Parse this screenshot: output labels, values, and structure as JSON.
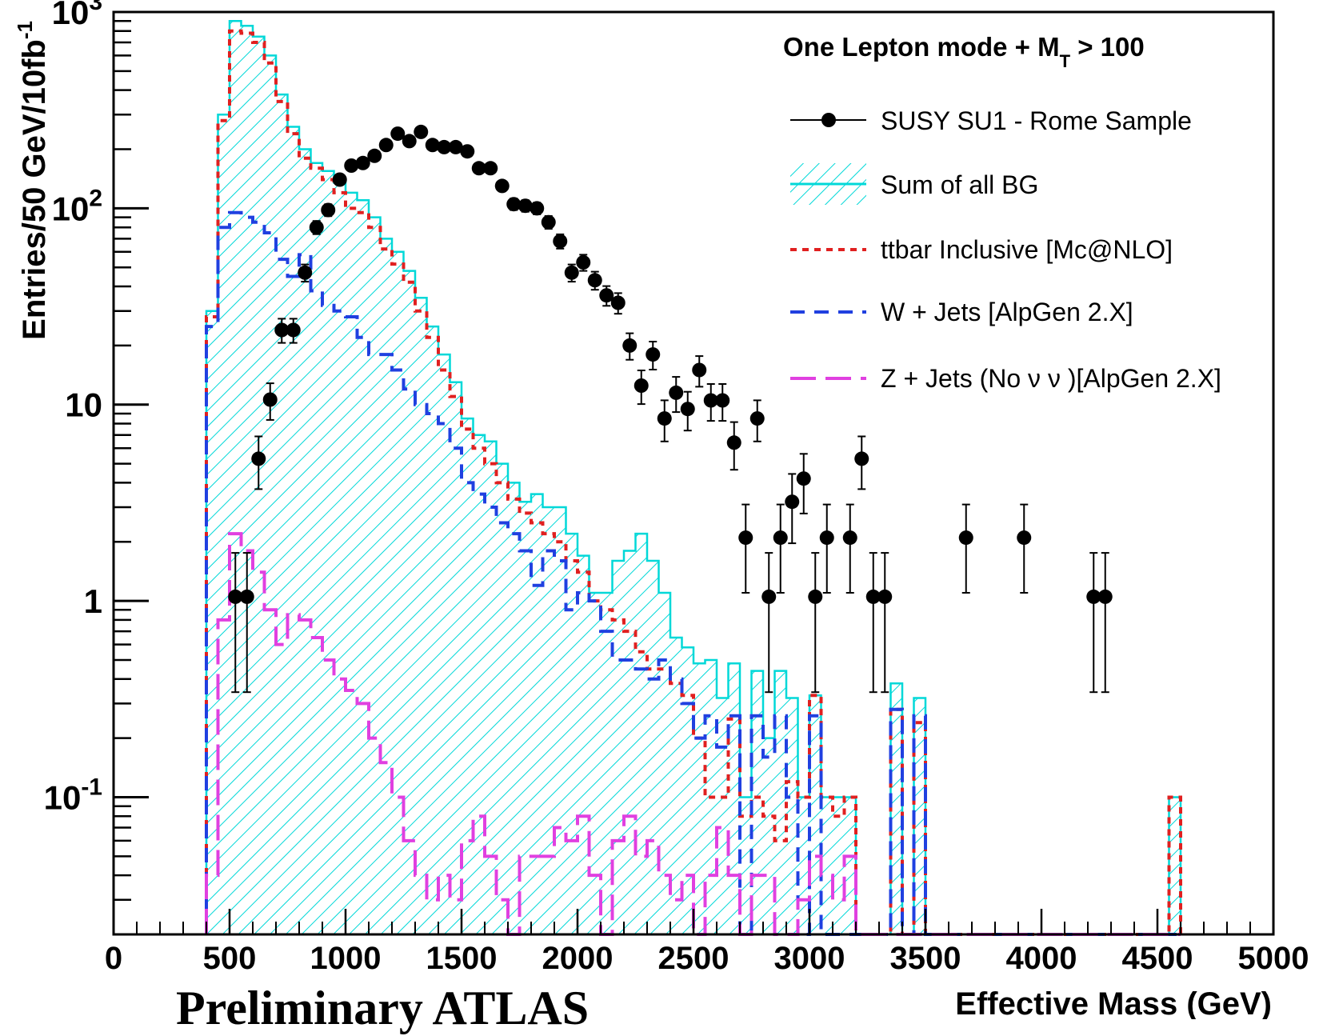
{
  "chart_data": {
    "type": "histogram",
    "xlabel": "Effective Mass (GeV)",
    "ylabel": "Entries/50 GeV/10fb",
    "ylabel_sup": "-1",
    "title": "One Lepton mode + M",
    "title_sub": "T",
    "title_tail": " > 100",
    "xlim": [
      0,
      5000
    ],
    "ylim": [
      0.02,
      1000
    ],
    "yscale": "log",
    "bin_width": 50,
    "x_ticks": [
      0,
      500,
      1000,
      1500,
      2000,
      2500,
      3000,
      3500,
      4000,
      4500,
      5000
    ],
    "x_tick_labels": [
      "0",
      "500",
      "1000",
      "1500",
      "2000",
      "2500",
      "3000",
      "3500",
      "4000",
      "4500",
      "5000"
    ],
    "y_ticks": [
      {
        "value": 1000,
        "base": "10",
        "sup": "3"
      },
      {
        "value": 100,
        "base": "10",
        "sup": "2"
      },
      {
        "value": 10,
        "base": "10",
        "sup": ""
      },
      {
        "value": 1,
        "base": "1",
        "sup": ""
      },
      {
        "value": 0.1,
        "base": "10",
        "sup": "-1"
      }
    ],
    "legend_position": "top-right",
    "series": [
      {
        "name": "Sum of all BG",
        "kind": "hatched-histogram",
        "color": "#00d8d8",
        "bins_start": 400,
        "values": [
          30,
          300,
          900,
          850,
          750,
          600,
          380,
          260,
          200,
          170,
          155,
          135,
          120,
          110,
          90,
          70,
          60,
          48,
          35,
          25,
          18,
          13,
          8.5,
          7,
          6.5,
          5,
          4,
          3.2,
          3.5,
          3.0,
          3.0,
          2.2,
          1.7,
          1.1,
          1.1,
          1.6,
          1.8,
          2.2,
          1.6,
          1.1,
          0.65,
          0.58,
          0.48,
          0.5,
          0.32,
          0.48,
          0.1,
          0.44,
          0.2,
          0.44,
          0.32,
          0.1,
          0.33,
          0.1,
          0.1,
          0.1,
          0.02,
          0.02,
          0.02,
          0.38,
          0.02,
          0.32,
          0.02,
          0.02,
          0.02,
          0.02,
          0.02,
          0.02,
          0.02,
          0.02,
          0.02,
          0.02,
          0.02,
          0.02,
          0.02,
          0.02,
          0.02,
          0.02,
          0.02,
          0.02,
          0.02,
          0.02,
          0.02,
          0.1
        ]
      },
      {
        "name": "ttbar Inclusive [Mc@NLO]",
        "kind": "dotted-step",
        "color": "#e02020",
        "bins_start": 400,
        "values": [
          28,
          280,
          800,
          780,
          700,
          550,
          350,
          240,
          180,
          160,
          140,
          120,
          100,
          95,
          80,
          62,
          52,
          42,
          30,
          22,
          15,
          11,
          7.5,
          6,
          5,
          4,
          3.3,
          2.8,
          2.5,
          2.2,
          2.0,
          1.6,
          1.4,
          1.0,
          0.9,
          0.8,
          0.7,
          0.55,
          0.45,
          0.45,
          0.38,
          0.33,
          0.2,
          0.1,
          0.1,
          0.25,
          0.08,
          0.1,
          0.08,
          0.06,
          0.12,
          0.1,
          0.33,
          0.1,
          0.08,
          0.1,
          0.02,
          0.02,
          0.02,
          0.28,
          0.02,
          0.24,
          0.02,
          0.02,
          0.02,
          0.02,
          0.02,
          0.02,
          0.02,
          0.02,
          0.02,
          0.02,
          0.02,
          0.02,
          0.02,
          0.02,
          0.02,
          0.02,
          0.02,
          0.02,
          0.02,
          0.02,
          0.02,
          0.1
        ]
      },
      {
        "name": "W + Jets [AlpGen 2.X]",
        "kind": "dashed-step",
        "color": "#2040e0",
        "bins_start": 400,
        "values": [
          25,
          80,
          95,
          90,
          85,
          75,
          55,
          45,
          58,
          38,
          32,
          30,
          28,
          22,
          18,
          18,
          15,
          12,
          10,
          9,
          8,
          6,
          4,
          3.5,
          3.0,
          2.5,
          2.2,
          1.8,
          1.2,
          1.8,
          1.6,
          0.9,
          1.1,
          1.0,
          0.7,
          0.5,
          0.5,
          0.45,
          0.4,
          0.5,
          0.4,
          0.3,
          0.2,
          0.26,
          0.18,
          0.26,
          0.02,
          0.26,
          0.16,
          0.26,
          0.1,
          0.02,
          0.26,
          0.02,
          0.02,
          0.02,
          0.02,
          0.02,
          0.02,
          0.28,
          0.02,
          0.26,
          0.02,
          0.02,
          0.02,
          0.02,
          0.02,
          0.02,
          0.02,
          0.02,
          0.02,
          0.02,
          0.02,
          0.02,
          0.02,
          0.02,
          0.02,
          0.02,
          0.02,
          0.02,
          0.02,
          0.02,
          0.02,
          0.02
        ]
      },
      {
        "name": "Z + Jets (No ν ν )[AlpGen 2.X]",
        "kind": "long-dashed-step",
        "color": "#e040e0",
        "bins_start": 400,
        "values": [
          0.04,
          0.8,
          2.2,
          1.8,
          1.4,
          0.9,
          0.6,
          0.85,
          0.8,
          0.65,
          0.5,
          0.4,
          0.35,
          0.3,
          0.2,
          0.15,
          0.1,
          0.06,
          0.04,
          0.03,
          0.04,
          0.03,
          0.06,
          0.08,
          0.05,
          0.03,
          0.02,
          0.05,
          0.05,
          0.05,
          0.07,
          0.06,
          0.08,
          0.04,
          0.02,
          0.06,
          0.08,
          0.05,
          0.06,
          0.04,
          0.03,
          0.04,
          0.02,
          0.04,
          0.07,
          0.04,
          0.02,
          0.04,
          0.04,
          0.02,
          0.02,
          0.03,
          0.05,
          0.04,
          0.03,
          0.05,
          0.02,
          0.02,
          0.02,
          0.02,
          0.02,
          0.02,
          0.02,
          0.02,
          0.02,
          0.02,
          0.02,
          0.02,
          0.02,
          0.02,
          0.02,
          0.02,
          0.02,
          0.02,
          0.02,
          0.02,
          0.02,
          0.02,
          0.02,
          0.02,
          0.02,
          0.02,
          0.02,
          0.02
        ]
      },
      {
        "name": "SUSY SU1 - Rome Sample",
        "kind": "points-with-errors",
        "color": "#000000",
        "points": [
          {
            "x": 525,
            "y": 1.05
          },
          {
            "x": 575,
            "y": 1.05
          },
          {
            "x": 625,
            "y": 5.3
          },
          {
            "x": 675,
            "y": 10.6
          },
          {
            "x": 725,
            "y": 24
          },
          {
            "x": 775,
            "y": 24
          },
          {
            "x": 825,
            "y": 47
          },
          {
            "x": 875,
            "y": 80
          },
          {
            "x": 925,
            "y": 98
          },
          {
            "x": 975,
            "y": 140
          },
          {
            "x": 1025,
            "y": 165
          },
          {
            "x": 1075,
            "y": 170
          },
          {
            "x": 1125,
            "y": 185
          },
          {
            "x": 1175,
            "y": 210
          },
          {
            "x": 1225,
            "y": 240
          },
          {
            "x": 1275,
            "y": 220
          },
          {
            "x": 1325,
            "y": 245
          },
          {
            "x": 1375,
            "y": 210
          },
          {
            "x": 1425,
            "y": 205
          },
          {
            "x": 1475,
            "y": 205
          },
          {
            "x": 1525,
            "y": 195
          },
          {
            "x": 1575,
            "y": 160
          },
          {
            "x": 1625,
            "y": 160
          },
          {
            "x": 1675,
            "y": 130
          },
          {
            "x": 1725,
            "y": 105
          },
          {
            "x": 1775,
            "y": 103
          },
          {
            "x": 1825,
            "y": 100
          },
          {
            "x": 1875,
            "y": 85
          },
          {
            "x": 1925,
            "y": 68
          },
          {
            "x": 1975,
            "y": 47
          },
          {
            "x": 2025,
            "y": 53
          },
          {
            "x": 2075,
            "y": 43
          },
          {
            "x": 2125,
            "y": 36
          },
          {
            "x": 2175,
            "y": 33
          },
          {
            "x": 2225,
            "y": 20
          },
          {
            "x": 2275,
            "y": 12.5
          },
          {
            "x": 2325,
            "y": 18
          },
          {
            "x": 2375,
            "y": 8.5
          },
          {
            "x": 2425,
            "y": 11.5
          },
          {
            "x": 2475,
            "y": 9.5
          },
          {
            "x": 2525,
            "y": 15
          },
          {
            "x": 2575,
            "y": 10.5
          },
          {
            "x": 2625,
            "y": 10.5
          },
          {
            "x": 2675,
            "y": 6.4
          },
          {
            "x": 2725,
            "y": 2.1
          },
          {
            "x": 2775,
            "y": 8.5
          },
          {
            "x": 2825,
            "y": 1.05
          },
          {
            "x": 2875,
            "y": 2.1
          },
          {
            "x": 2925,
            "y": 3.2
          },
          {
            "x": 2975,
            "y": 4.2
          },
          {
            "x": 3025,
            "y": 1.05
          },
          {
            "x": 3075,
            "y": 2.1
          },
          {
            "x": 3175,
            "y": 2.1
          },
          {
            "x": 3225,
            "y": 5.3
          },
          {
            "x": 3275,
            "y": 1.05
          },
          {
            "x": 3325,
            "y": 1.05
          },
          {
            "x": 3675,
            "y": 2.1
          },
          {
            "x": 3925,
            "y": 2.1
          },
          {
            "x": 4225,
            "y": 1.05
          },
          {
            "x": 4275,
            "y": 1.05
          }
        ]
      }
    ]
  },
  "footer_text": "Preliminary ATLAS"
}
